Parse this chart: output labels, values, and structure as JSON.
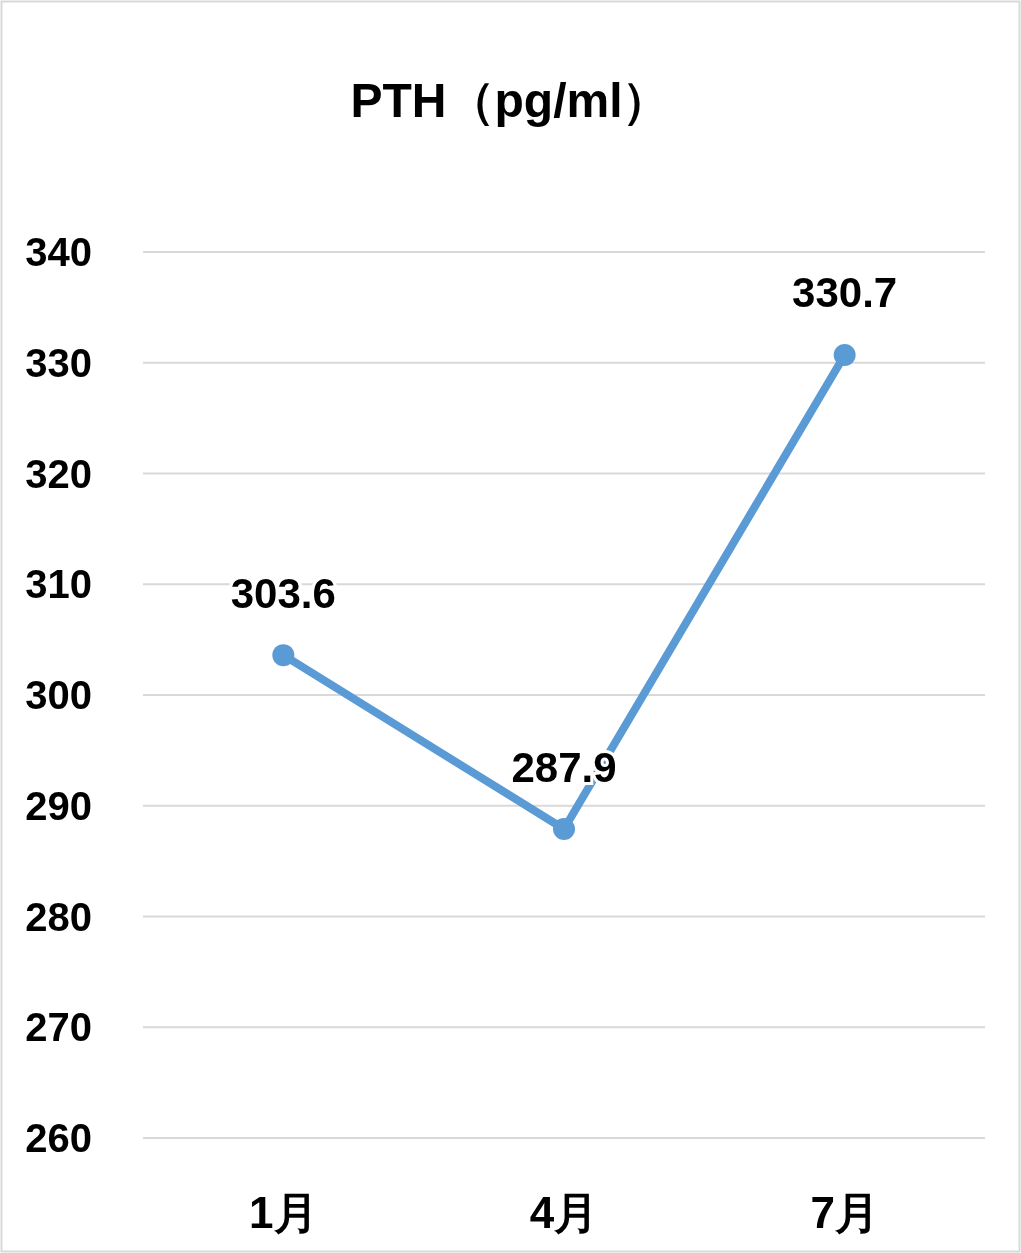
{
  "chart_data": {
    "type": "line",
    "title": "PTH（pg/ml）",
    "categories": [
      "1月",
      "4月",
      "7月"
    ],
    "series": [
      {
        "color": "#5b9bd5",
        "values": [
          303.6,
          287.9,
          330.7
        ]
      }
    ],
    "ylim": [
      260,
      340
    ],
    "yticks": [
      260,
      270,
      280,
      290,
      300,
      310,
      320,
      330,
      340
    ],
    "grid": "y",
    "data_labels": true,
    "marker": "circle",
    "line_style": "solid"
  }
}
